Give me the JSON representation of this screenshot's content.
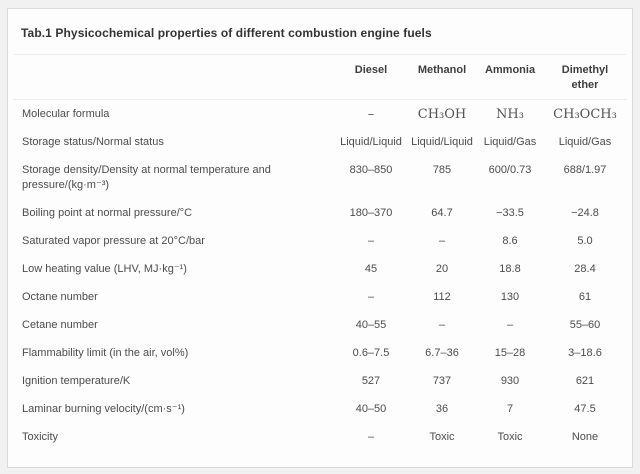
{
  "title": "Tab.1 Physicochemical properties of different combustion engine fuels",
  "table": {
    "columns": [
      "Diesel",
      "Methanol",
      "Ammonia",
      "Dimethyl ether"
    ],
    "rows": [
      {
        "label": "Molecular formula",
        "values": [
          "–",
          "CH₃OH",
          "NH₃",
          "CH₃OCH₃"
        ],
        "serif": true
      },
      {
        "label": "Storage status/Normal status",
        "values": [
          "Liquid/Liquid",
          "Liquid/Liquid",
          "Liquid/Gas",
          "Liquid/Gas"
        ]
      },
      {
        "label": "Storage density/Density at normal temperature and pressure/(kg·m⁻³)",
        "values": [
          "830–850",
          "785",
          "600/0.73",
          "688/1.97"
        ]
      },
      {
        "label": "Boiling point at normal pressure/°C",
        "values": [
          "180–370",
          "64.7",
          "−33.5",
          "−24.8"
        ]
      },
      {
        "label": "Saturated vapor pressure at 20°C/bar",
        "values": [
          "–",
          "–",
          "8.6",
          "5.0"
        ]
      },
      {
        "label": "Low heating value (LHV, MJ·kg⁻¹)",
        "values": [
          "45",
          "20",
          "18.8",
          "28.4"
        ]
      },
      {
        "label": "Octane number",
        "values": [
          "–",
          "112",
          "130",
          "61"
        ]
      },
      {
        "label": "Cetane number",
        "values": [
          "40–55",
          "–",
          "–",
          "55–60"
        ]
      },
      {
        "label": "Flammability limit (in the air, vol%)",
        "values": [
          "0.6–7.5",
          "6.7–36",
          "15–28",
          "3–18.6"
        ]
      },
      {
        "label": "Ignition temperature/K",
        "values": [
          "527",
          "737",
          "930",
          "621"
        ]
      },
      {
        "label": "Laminar burning velocity/(cm·s⁻¹)",
        "values": [
          "40–50",
          "36",
          "7",
          "47.5"
        ]
      },
      {
        "label": "Toxicity",
        "values": [
          "–",
          "Toxic",
          "Toxic",
          "None"
        ]
      }
    ]
  }
}
